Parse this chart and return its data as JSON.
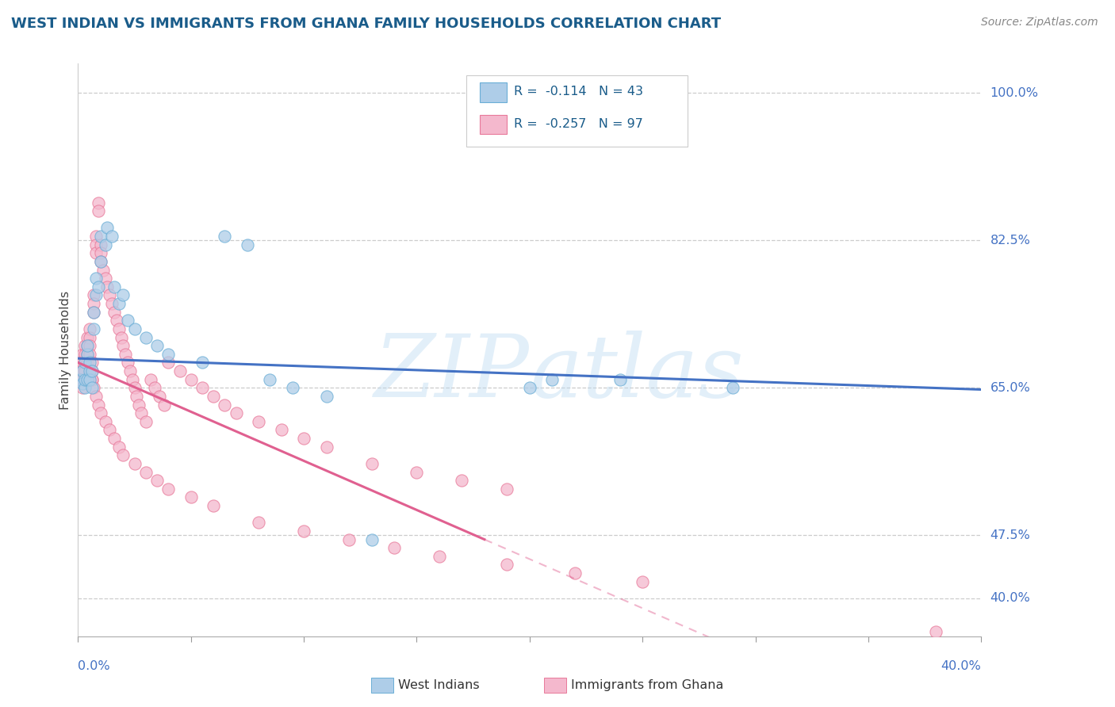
{
  "title": "WEST INDIAN VS IMMIGRANTS FROM GHANA FAMILY HOUSEHOLDS CORRELATION CHART",
  "source": "Source: ZipAtlas.com",
  "ylabel": "Family Households",
  "ytick_labels": [
    "100.0%",
    "82.5%",
    "65.0%",
    "47.5%",
    "40.0%"
  ],
  "ytick_vals": [
    1.0,
    0.825,
    0.65,
    0.475,
    0.4
  ],
  "xtick_label_left": "0.0%",
  "xtick_label_right": "40.0%",
  "xlim": [
    0.0,
    0.4
  ],
  "ylim": [
    0.355,
    1.035
  ],
  "legend_line1": "R =  -0.114   N = 43",
  "legend_line2": "R =  -0.257   N = 97",
  "color_blue_fill": "#aecde8",
  "color_blue_edge": "#6aaed6",
  "color_pink_fill": "#f4b8cd",
  "color_pink_edge": "#e8799a",
  "color_blue_line": "#4472c4",
  "color_pink_line": "#e06090",
  "legend_label1": "West Indians",
  "legend_label2": "Immigrants from Ghana",
  "watermark": "ZIPatlas",
  "wi_x": [
    0.001,
    0.002,
    0.002,
    0.003,
    0.003,
    0.003,
    0.004,
    0.004,
    0.004,
    0.005,
    0.005,
    0.005,
    0.006,
    0.006,
    0.007,
    0.007,
    0.008,
    0.008,
    0.009,
    0.01,
    0.01,
    0.012,
    0.013,
    0.015,
    0.016,
    0.018,
    0.02,
    0.022,
    0.025,
    0.03,
    0.035,
    0.04,
    0.055,
    0.065,
    0.075,
    0.085,
    0.095,
    0.11,
    0.13,
    0.2,
    0.21,
    0.24,
    0.29
  ],
  "wi_y": [
    0.66,
    0.655,
    0.67,
    0.68,
    0.65,
    0.66,
    0.69,
    0.7,
    0.66,
    0.67,
    0.68,
    0.66,
    0.65,
    0.67,
    0.72,
    0.74,
    0.76,
    0.78,
    0.77,
    0.8,
    0.83,
    0.82,
    0.84,
    0.83,
    0.77,
    0.75,
    0.76,
    0.73,
    0.72,
    0.71,
    0.7,
    0.69,
    0.68,
    0.83,
    0.82,
    0.66,
    0.65,
    0.64,
    0.47,
    0.65,
    0.66,
    0.66,
    0.65
  ],
  "gh_x": [
    0.001,
    0.001,
    0.001,
    0.002,
    0.002,
    0.002,
    0.002,
    0.002,
    0.003,
    0.003,
    0.003,
    0.003,
    0.004,
    0.004,
    0.004,
    0.004,
    0.005,
    0.005,
    0.005,
    0.005,
    0.006,
    0.006,
    0.006,
    0.007,
    0.007,
    0.007,
    0.008,
    0.008,
    0.008,
    0.009,
    0.009,
    0.01,
    0.01,
    0.01,
    0.011,
    0.012,
    0.013,
    0.014,
    0.015,
    0.016,
    0.017,
    0.018,
    0.019,
    0.02,
    0.021,
    0.022,
    0.023,
    0.024,
    0.025,
    0.026,
    0.027,
    0.028,
    0.03,
    0.032,
    0.034,
    0.036,
    0.038,
    0.04,
    0.045,
    0.05,
    0.055,
    0.06,
    0.065,
    0.07,
    0.08,
    0.09,
    0.1,
    0.11,
    0.13,
    0.15,
    0.17,
    0.19,
    0.006,
    0.007,
    0.008,
    0.009,
    0.01,
    0.012,
    0.014,
    0.016,
    0.018,
    0.02,
    0.025,
    0.03,
    0.035,
    0.04,
    0.05,
    0.06,
    0.08,
    0.1,
    0.12,
    0.14,
    0.16,
    0.19,
    0.22,
    0.25,
    0.38
  ],
  "gh_y": [
    0.68,
    0.67,
    0.66,
    0.69,
    0.68,
    0.67,
    0.66,
    0.65,
    0.7,
    0.69,
    0.68,
    0.67,
    0.71,
    0.7,
    0.69,
    0.68,
    0.72,
    0.71,
    0.7,
    0.69,
    0.68,
    0.67,
    0.66,
    0.76,
    0.75,
    0.74,
    0.83,
    0.82,
    0.81,
    0.87,
    0.86,
    0.82,
    0.81,
    0.8,
    0.79,
    0.78,
    0.77,
    0.76,
    0.75,
    0.74,
    0.73,
    0.72,
    0.71,
    0.7,
    0.69,
    0.68,
    0.67,
    0.66,
    0.65,
    0.64,
    0.63,
    0.62,
    0.61,
    0.66,
    0.65,
    0.64,
    0.63,
    0.68,
    0.67,
    0.66,
    0.65,
    0.64,
    0.63,
    0.62,
    0.61,
    0.6,
    0.59,
    0.58,
    0.56,
    0.55,
    0.54,
    0.53,
    0.66,
    0.65,
    0.64,
    0.63,
    0.62,
    0.61,
    0.6,
    0.59,
    0.58,
    0.57,
    0.56,
    0.55,
    0.54,
    0.53,
    0.52,
    0.51,
    0.49,
    0.48,
    0.47,
    0.46,
    0.45,
    0.44,
    0.43,
    0.42,
    0.36
  ]
}
